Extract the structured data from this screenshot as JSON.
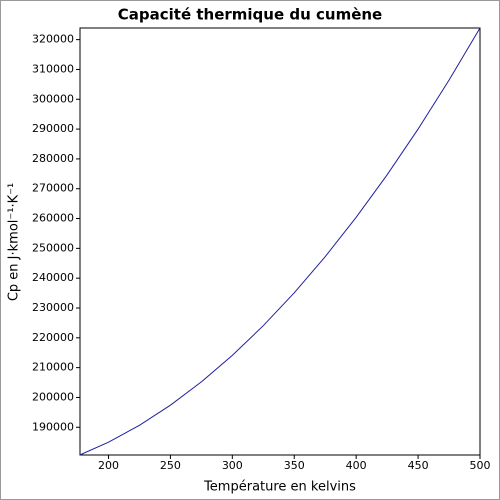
{
  "chart_data": {
    "type": "line",
    "title": "Capacité thermique du cumène",
    "x_label": "Température en kelvins",
    "y_label": "Cp en J·kmol⁻¹·K⁻¹",
    "x": [
      177,
      200,
      225,
      250,
      275,
      300,
      325,
      350,
      375,
      400,
      425,
      450,
      475,
      500
    ],
    "series": [
      {
        "color": "#2020a0",
        "values": [
          180740,
          185000,
          190663,
          197400,
          205213,
          214100,
          224063,
          235100,
          247213,
          260400,
          274663,
          290000,
          306413,
          323900
        ]
      }
    ],
    "xlim": [
      177,
      500
    ],
    "ylim": [
      180700,
      323900
    ],
    "xticks": [
      200,
      250,
      300,
      350,
      400,
      450,
      500
    ],
    "yticks": [
      190000,
      200000,
      210000,
      220000,
      230000,
      240000,
      250000,
      260000,
      270000,
      280000,
      290000,
      300000,
      310000,
      320000
    ],
    "grid": false
  }
}
